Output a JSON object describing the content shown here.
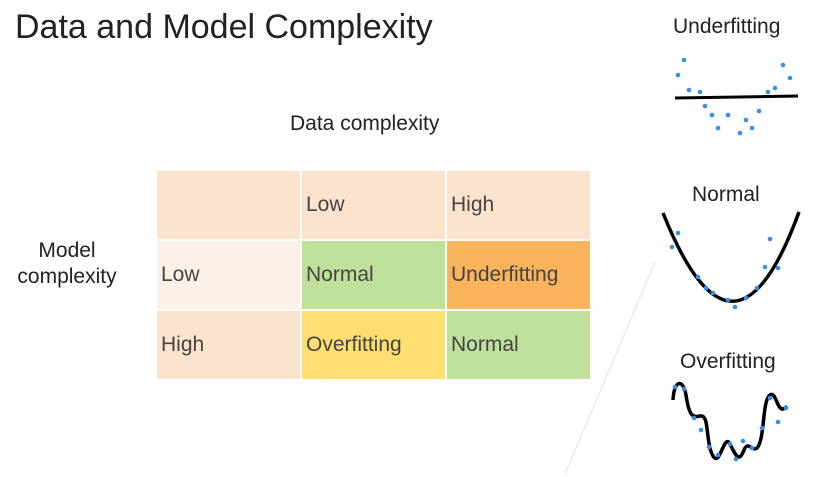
{
  "slide": {
    "title": "Data and Model Complexity",
    "data_complexity_label": "Data complexity",
    "model_complexity_label": "Model complexity"
  },
  "table": {
    "header": [
      "",
      "Low",
      "High"
    ],
    "rows": [
      {
        "label": "Low",
        "cells": [
          "Normal",
          "Underfitting"
        ]
      },
      {
        "label": "High",
        "cells": [
          "Overfitting",
          "Normal"
        ]
      }
    ]
  },
  "colors": {
    "header_bg": "#fce3cd",
    "row_low_label_bg": "#fdf0e6",
    "row_high_label_bg": "#fce3cd",
    "normal": "#bfe09a",
    "underfitting": "#f9b45d",
    "overfitting": "#ffde72",
    "curve": "#000000",
    "points": "#3a8ee6"
  },
  "plots": {
    "underfitting_label": "Underfitting",
    "normal_label": "Normal",
    "overfitting_label": "Overfitting"
  }
}
